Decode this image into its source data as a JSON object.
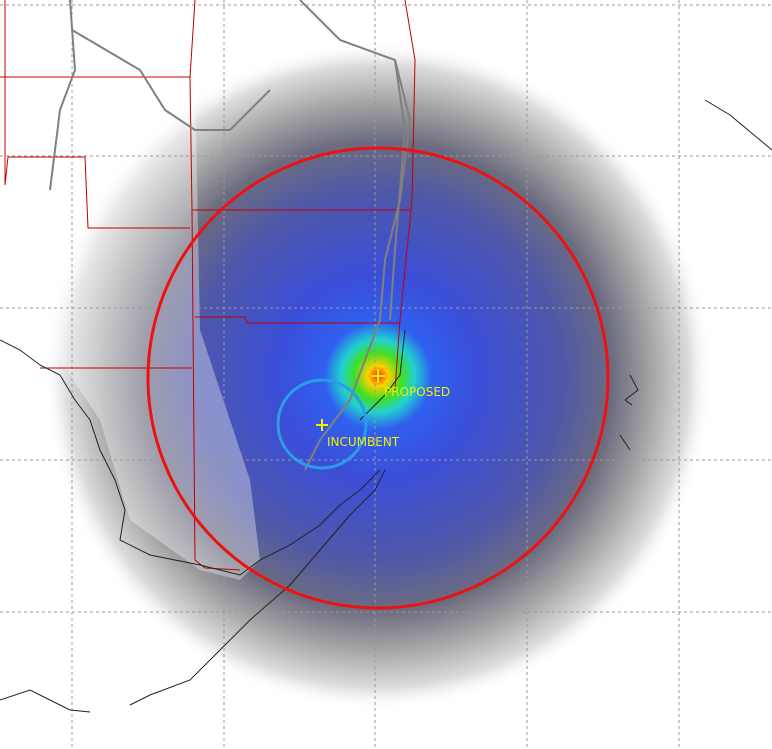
{
  "labels": {
    "proposed": "PROPOSED",
    "incumbent": "INCUMBENT"
  }
}
